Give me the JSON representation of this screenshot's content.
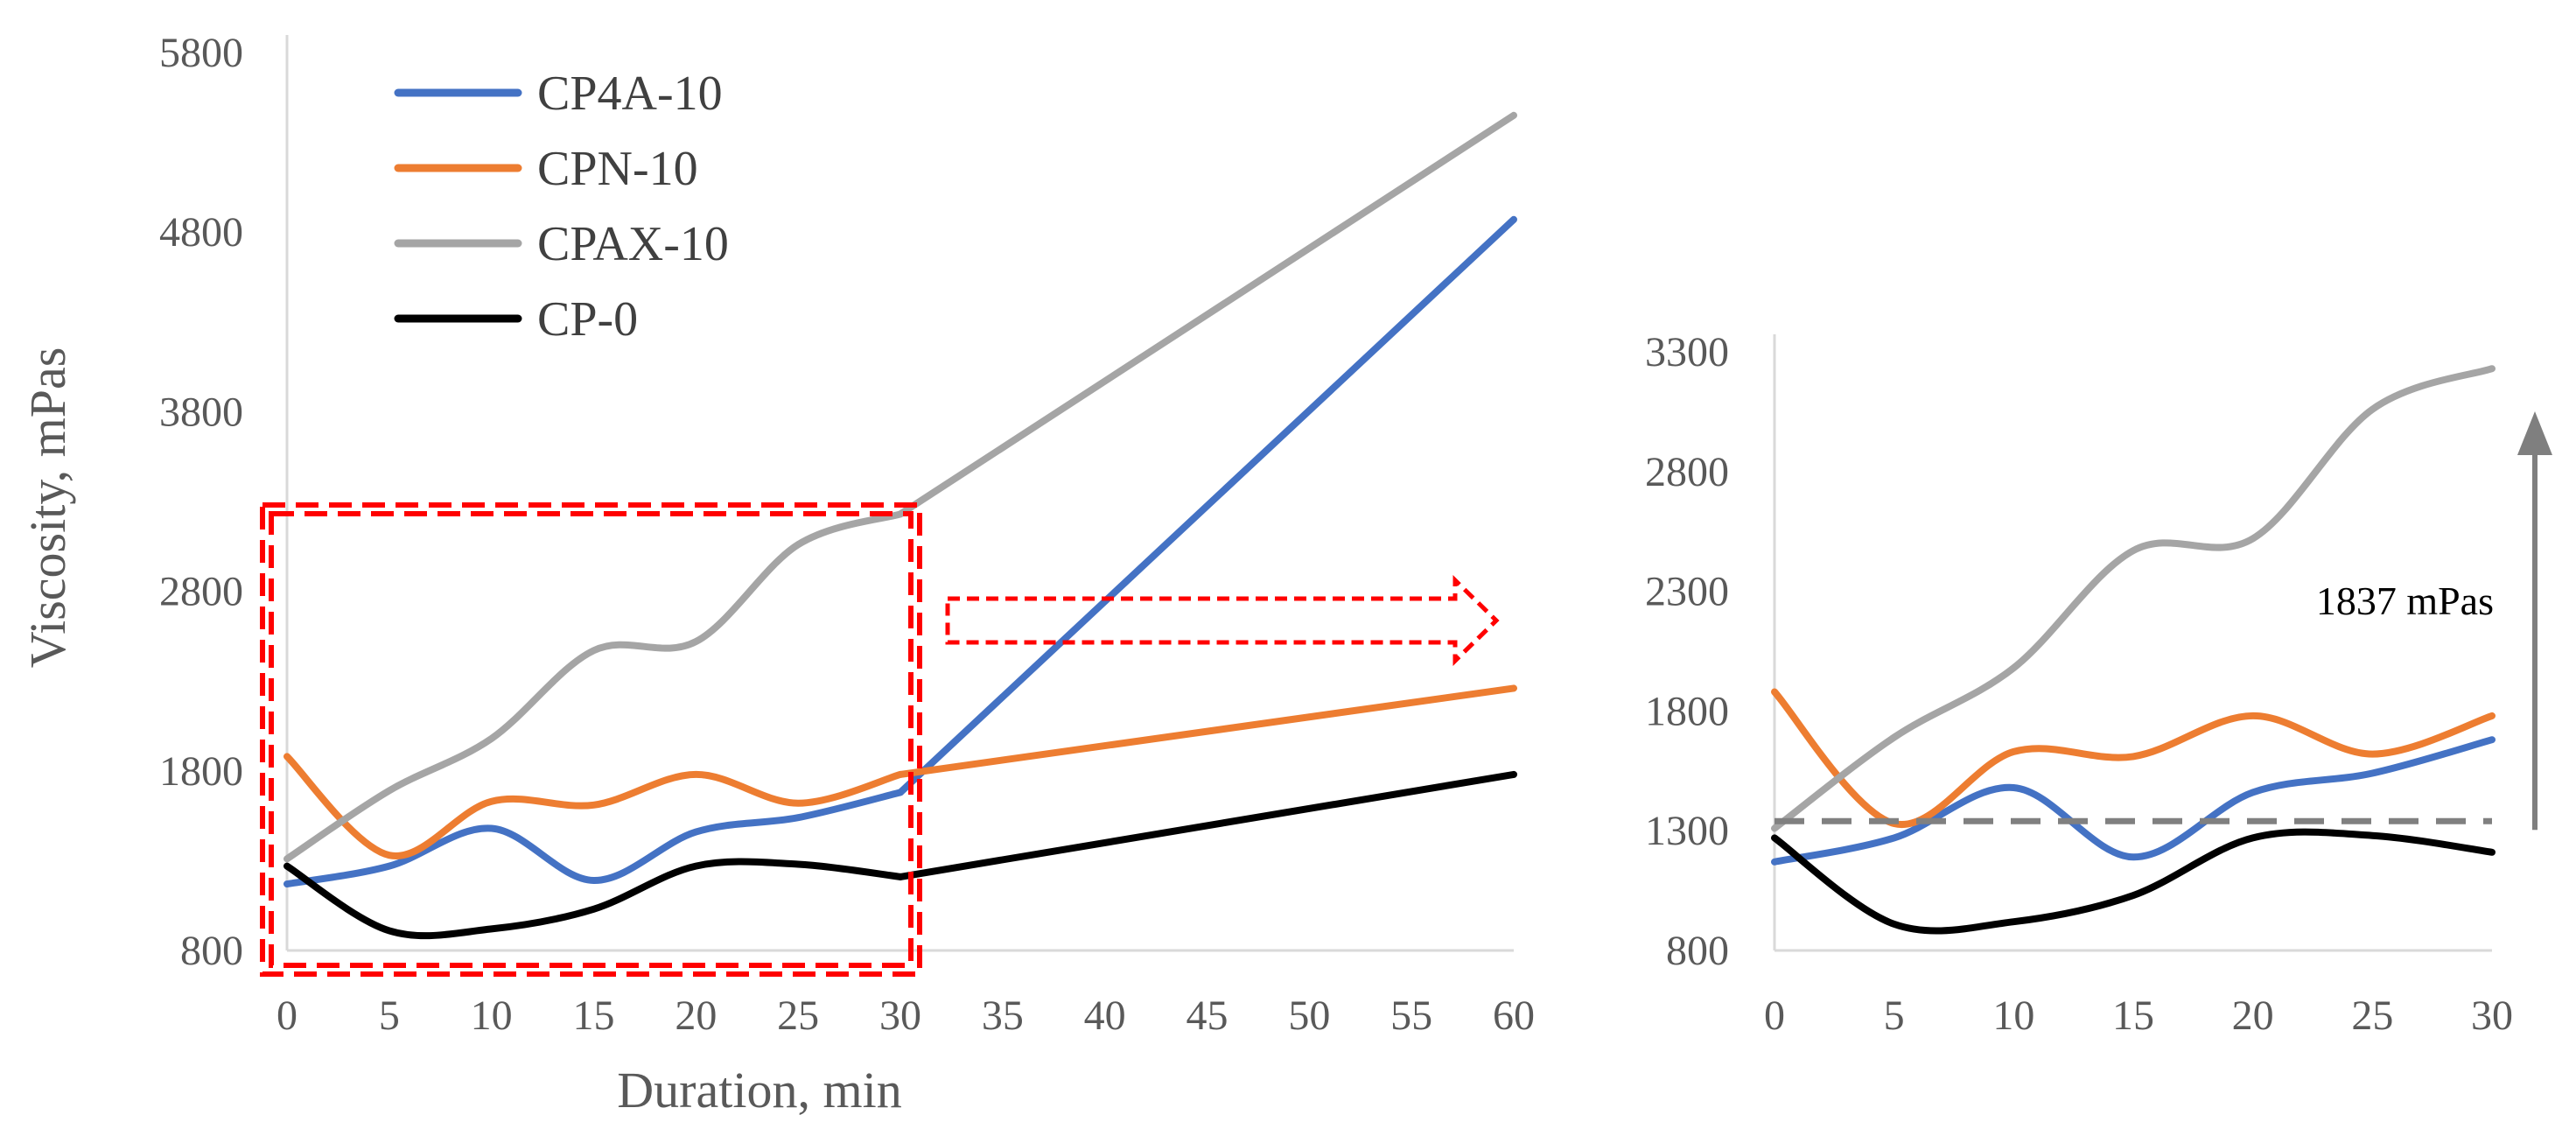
{
  "chart_data": [
    {
      "type": "line",
      "title": "",
      "xlabel": "Duration, min",
      "ylabel": "Viscosity,  mPas",
      "xlim": [
        0,
        60
      ],
      "ylim": [
        800,
        5800
      ],
      "xticks": [
        "0",
        "5",
        "10",
        "15",
        "20",
        "25",
        "30",
        "35",
        "40",
        "45",
        "50",
        "55",
        "60"
      ],
      "yticks": [
        "800",
        "1800",
        "2800",
        "3800",
        "4800",
        "5800"
      ],
      "grid": false,
      "legend_position": "top-left",
      "series": [
        {
          "name": "CP4A-10",
          "color": "#4472C4",
          "x": [
            0,
            5,
            10,
            15,
            20,
            25,
            30,
            60
          ],
          "y": [
            1170,
            1270,
            1480,
            1190,
            1460,
            1540,
            1680,
            4870
          ]
        },
        {
          "name": "CPN-10",
          "color": "#ED7D31",
          "x": [
            0,
            5,
            10,
            15,
            20,
            25,
            30,
            60
          ],
          "y": [
            1880,
            1330,
            1630,
            1610,
            1780,
            1620,
            1780,
            2260
          ]
        },
        {
          "name": "CPAX-10",
          "color": "#A5A5A5",
          "x": [
            0,
            5,
            10,
            15,
            20,
            25,
            30,
            60
          ],
          "y": [
            1310,
            1690,
            1980,
            2470,
            2520,
            3060,
            3230,
            5450
          ]
        },
        {
          "name": "CP-0",
          "color": "#000000",
          "x": [
            0,
            5,
            10,
            15,
            20,
            25,
            30,
            60
          ],
          "y": [
            1270,
            910,
            920,
            1030,
            1270,
            1280,
            1210,
            1780
          ]
        }
      ]
    },
    {
      "type": "line",
      "title": "",
      "xlabel": "",
      "ylabel": "",
      "xlim": [
        0,
        30
      ],
      "ylim": [
        800,
        3300
      ],
      "xticks": [
        "0",
        "5",
        "10",
        "15",
        "20",
        "25",
        "30"
      ],
      "yticks": [
        "800",
        "1300",
        "1800",
        "2300",
        "2800",
        "3300"
      ],
      "grid": false,
      "reference_line": 1340,
      "annotation": "1837 mPas",
      "series": [
        {
          "name": "CP4A-10",
          "color": "#4472C4",
          "x": [
            0,
            5,
            10,
            15,
            20,
            25,
            30
          ],
          "y": [
            1170,
            1270,
            1480,
            1190,
            1460,
            1540,
            1680
          ]
        },
        {
          "name": "CPN-10",
          "color": "#ED7D31",
          "x": [
            0,
            5,
            10,
            15,
            20,
            25,
            30
          ],
          "y": [
            1880,
            1330,
            1630,
            1610,
            1780,
            1620,
            1780
          ]
        },
        {
          "name": "CPAX-10",
          "color": "#A5A5A5",
          "x": [
            0,
            5,
            10,
            15,
            20,
            25,
            30
          ],
          "y": [
            1310,
            1690,
            1980,
            2470,
            2520,
            3060,
            3230
          ]
        },
        {
          "name": "CP-0",
          "color": "#000000",
          "x": [
            0,
            5,
            10,
            15,
            20,
            25,
            30
          ],
          "y": [
            1270,
            910,
            920,
            1030,
            1270,
            1280,
            1210
          ]
        }
      ]
    }
  ]
}
